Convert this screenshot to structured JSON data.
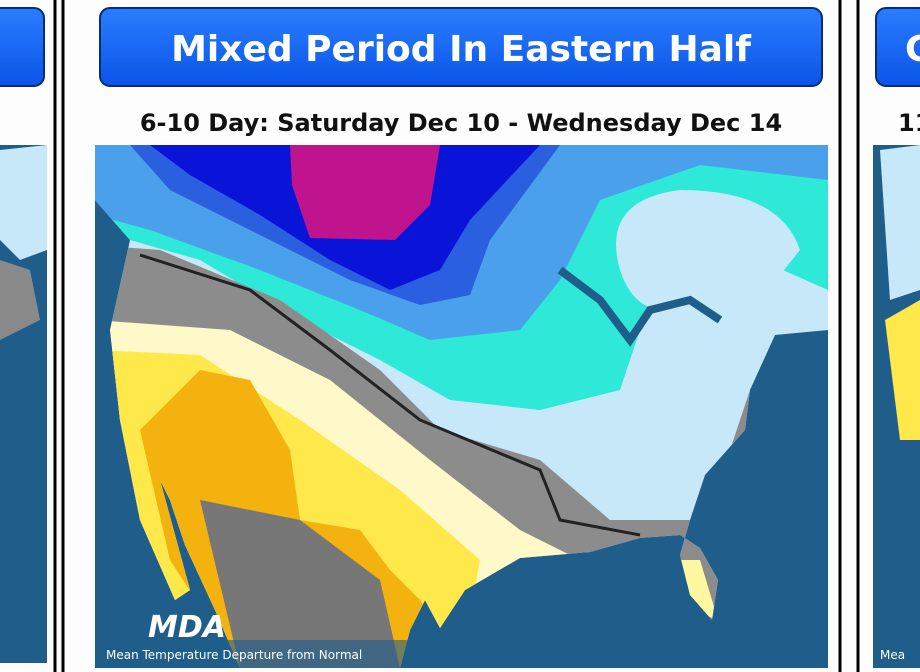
{
  "center_panel": {
    "title": "Mixed Period In Eastern Half",
    "subtitle": "6-10 Day: Saturday Dec 10 - Wednesday Dec 14",
    "logo": "MDA",
    "caption": "Mean Temperature Departure from Normal"
  },
  "right_panel": {
    "title": "C",
    "subtitle": "11",
    "caption": "Mea"
  }
}
